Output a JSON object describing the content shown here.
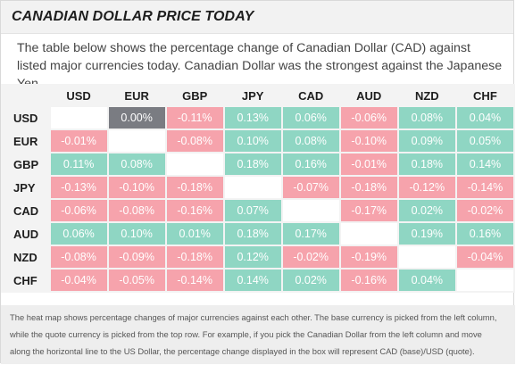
{
  "title": "CANADIAN DOLLAR PRICE TODAY",
  "description": "The table below shows the percentage change of Canadian Dollar (CAD) against listed major currencies today. Canadian Dollar was the strongest against the Japanese Yen.",
  "heatmap": {
    "columns": [
      "USD",
      "EUR",
      "GBP",
      "JPY",
      "CAD",
      "AUD",
      "NZD",
      "CHF"
    ],
    "rows": [
      {
        "label": "USD",
        "cells": [
          "",
          "0.00%",
          "-0.11%",
          "0.13%",
          "0.06%",
          "-0.06%",
          "0.08%",
          "0.04%"
        ]
      },
      {
        "label": "EUR",
        "cells": [
          "-0.01%",
          "",
          "-0.08%",
          "0.10%",
          "0.08%",
          "-0.10%",
          "0.09%",
          "0.05%"
        ]
      },
      {
        "label": "GBP",
        "cells": [
          "0.11%",
          "0.08%",
          "",
          "0.18%",
          "0.16%",
          "-0.01%",
          "0.18%",
          "0.14%"
        ]
      },
      {
        "label": "JPY",
        "cells": [
          "-0.13%",
          "-0.10%",
          "-0.18%",
          "",
          "-0.07%",
          "-0.18%",
          "-0.12%",
          "-0.14%"
        ]
      },
      {
        "label": "CAD",
        "cells": [
          "-0.06%",
          "-0.08%",
          "-0.16%",
          "0.07%",
          "",
          "-0.17%",
          "0.02%",
          "-0.02%"
        ]
      },
      {
        "label": "AUD",
        "cells": [
          "0.06%",
          "0.10%",
          "0.01%",
          "0.18%",
          "0.17%",
          "",
          "0.19%",
          "0.16%"
        ]
      },
      {
        "label": "NZD",
        "cells": [
          "-0.08%",
          "-0.09%",
          "-0.18%",
          "0.12%",
          "-0.02%",
          "-0.19%",
          "",
          "-0.04%"
        ]
      },
      {
        "label": "CHF",
        "cells": [
          "-0.04%",
          "-0.05%",
          "-0.14%",
          "0.14%",
          "0.02%",
          "-0.16%",
          "0.04%",
          ""
        ]
      }
    ],
    "colors": {
      "positive": "#8fd6c3",
      "negative": "#f6a3ac",
      "neutral": "#7a7c82",
      "empty": "#ffffff"
    }
  },
  "footer": {
    "lines": [
      "The heat map shows percentage changes of major currencies against each other. The base currency is picked from the left column,",
      "while the quote currency is picked from the top row. For example, if you pick the Canadian Dollar from the left column and move",
      "along the horizontal line to the US Dollar, the percentage change displayed in the box will represent CAD (base)/USD (quote)."
    ]
  }
}
